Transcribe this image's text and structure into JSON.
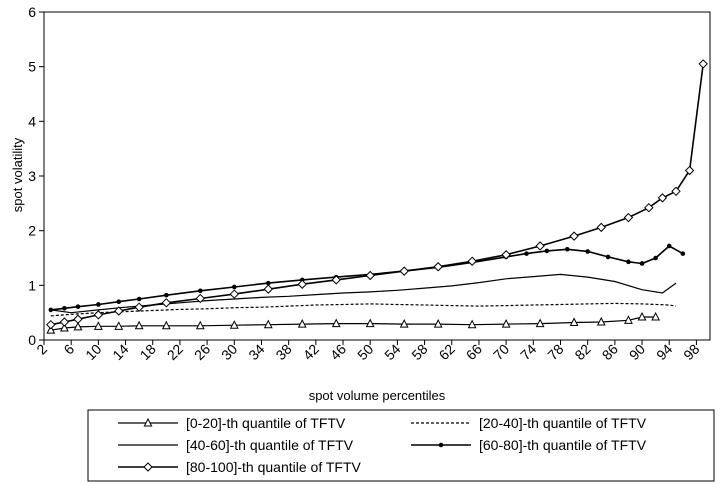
{
  "chart_data": {
    "type": "line",
    "xlabel": "spot volume percentiles",
    "ylabel": "spot volatility",
    "ylim": [
      0,
      6
    ],
    "yticks": [
      0,
      1,
      2,
      3,
      4,
      5,
      6
    ],
    "xlim": [
      2,
      100
    ],
    "xticks": [
      2,
      6,
      10,
      14,
      18,
      22,
      26,
      30,
      34,
      38,
      42,
      46,
      50,
      54,
      58,
      62,
      66,
      70,
      74,
      78,
      82,
      86,
      90,
      94,
      98
    ],
    "grid": false,
    "legend_position": "bottom",
    "series": [
      {
        "name": "[0-20]-th quantile of TFTV",
        "marker": "triangle",
        "style": "solid",
        "points": [
          [
            3,
            0.18
          ],
          [
            5,
            0.22
          ],
          [
            7,
            0.24
          ],
          [
            10,
            0.25
          ],
          [
            13,
            0.25
          ],
          [
            16,
            0.26
          ],
          [
            20,
            0.26
          ],
          [
            25,
            0.26
          ],
          [
            30,
            0.27
          ],
          [
            35,
            0.28
          ],
          [
            40,
            0.29
          ],
          [
            45,
            0.3
          ],
          [
            50,
            0.3
          ],
          [
            55,
            0.29
          ],
          [
            60,
            0.29
          ],
          [
            65,
            0.28
          ],
          [
            70,
            0.29
          ],
          [
            75,
            0.3
          ],
          [
            80,
            0.32
          ],
          [
            84,
            0.33
          ],
          [
            88,
            0.36
          ],
          [
            90,
            0.42
          ],
          [
            92,
            0.42
          ]
        ]
      },
      {
        "name": "[20-40]-th quantile of TFTV",
        "marker": "none",
        "style": "dashed",
        "points": [
          [
            3,
            0.44
          ],
          [
            6,
            0.47
          ],
          [
            10,
            0.5
          ],
          [
            14,
            0.52
          ],
          [
            18,
            0.54
          ],
          [
            22,
            0.56
          ],
          [
            26,
            0.57
          ],
          [
            30,
            0.59
          ],
          [
            34,
            0.6
          ],
          [
            38,
            0.62
          ],
          [
            42,
            0.64
          ],
          [
            46,
            0.65
          ],
          [
            50,
            0.66
          ],
          [
            54,
            0.65
          ],
          [
            58,
            0.64
          ],
          [
            62,
            0.63
          ],
          [
            66,
            0.62
          ],
          [
            70,
            0.63
          ],
          [
            74,
            0.64
          ],
          [
            78,
            0.65
          ],
          [
            82,
            0.66
          ],
          [
            86,
            0.67
          ],
          [
            90,
            0.66
          ],
          [
            94,
            0.64
          ],
          [
            95,
            0.62
          ]
        ]
      },
      {
        "name": "[40-60]-th quantile of TFTV",
        "marker": "none",
        "style": "solid",
        "points": [
          [
            3,
            0.55
          ],
          [
            6,
            0.5
          ],
          [
            10,
            0.55
          ],
          [
            14,
            0.6
          ],
          [
            18,
            0.64
          ],
          [
            22,
            0.68
          ],
          [
            26,
            0.72
          ],
          [
            30,
            0.75
          ],
          [
            34,
            0.78
          ],
          [
            38,
            0.8
          ],
          [
            42,
            0.83
          ],
          [
            46,
            0.86
          ],
          [
            50,
            0.88
          ],
          [
            54,
            0.91
          ],
          [
            58,
            0.95
          ],
          [
            62,
            0.99
          ],
          [
            66,
            1.05
          ],
          [
            70,
            1.12
          ],
          [
            74,
            1.16
          ],
          [
            78,
            1.2
          ],
          [
            82,
            1.15
          ],
          [
            86,
            1.07
          ],
          [
            90,
            0.92
          ],
          [
            93,
            0.86
          ],
          [
            95,
            1.04
          ]
        ]
      },
      {
        "name": "[60-80]-th quantile of TFTV",
        "marker": "dot",
        "style": "solid",
        "points": [
          [
            3,
            0.55
          ],
          [
            5,
            0.58
          ],
          [
            7,
            0.61
          ],
          [
            10,
            0.65
          ],
          [
            13,
            0.7
          ],
          [
            16,
            0.75
          ],
          [
            20,
            0.82
          ],
          [
            25,
            0.9
          ],
          [
            30,
            0.97
          ],
          [
            35,
            1.04
          ],
          [
            40,
            1.1
          ],
          [
            45,
            1.15
          ],
          [
            50,
            1.2
          ],
          [
            55,
            1.26
          ],
          [
            60,
            1.33
          ],
          [
            65,
            1.42
          ],
          [
            70,
            1.52
          ],
          [
            73,
            1.58
          ],
          [
            76,
            1.63
          ],
          [
            79,
            1.66
          ],
          [
            82,
            1.62
          ],
          [
            85,
            1.52
          ],
          [
            88,
            1.43
          ],
          [
            90,
            1.4
          ],
          [
            92,
            1.5
          ],
          [
            94,
            1.72
          ],
          [
            96,
            1.58
          ]
        ]
      },
      {
        "name": "[80-100]-th quantile of TFTV",
        "marker": "diamond",
        "style": "solid",
        "points": [
          [
            3,
            0.28
          ],
          [
            5,
            0.33
          ],
          [
            7,
            0.38
          ],
          [
            10,
            0.46
          ],
          [
            13,
            0.53
          ],
          [
            16,
            0.6
          ],
          [
            20,
            0.68
          ],
          [
            25,
            0.76
          ],
          [
            30,
            0.84
          ],
          [
            35,
            0.93
          ],
          [
            40,
            1.02
          ],
          [
            45,
            1.1
          ],
          [
            50,
            1.18
          ],
          [
            55,
            1.26
          ],
          [
            60,
            1.34
          ],
          [
            65,
            1.44
          ],
          [
            70,
            1.56
          ],
          [
            75,
            1.72
          ],
          [
            80,
            1.9
          ],
          [
            84,
            2.06
          ],
          [
            88,
            2.24
          ],
          [
            91,
            2.42
          ],
          [
            93,
            2.6
          ],
          [
            95,
            2.72
          ],
          [
            97,
            3.1
          ],
          [
            99,
            5.05
          ]
        ]
      }
    ]
  }
}
